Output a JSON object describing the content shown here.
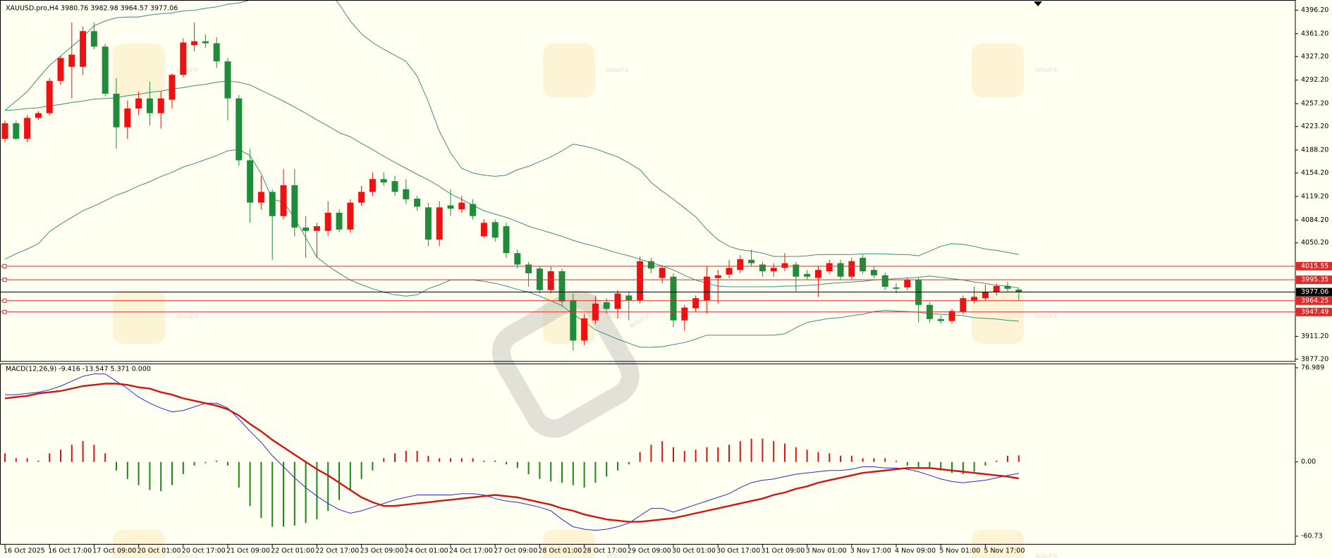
{
  "watermark": "WikiFX",
  "chart_data": [
    {
      "type": "candlestick",
      "title": "XAUUSD.pro,H4  3980.76 3982.98 3964.57 3977.06",
      "categories": [
        "16 Oct 2025",
        null,
        null,
        null,
        "16 Oct 17:00",
        null,
        null,
        null,
        "17 Oct 09:00",
        null,
        null,
        null,
        "20 Oct 01:00",
        null,
        null,
        null,
        "20 Oct 17:00",
        null,
        null,
        null,
        "21 Oct 09:00",
        null,
        null,
        null,
        "22 Oct 01:00",
        null,
        null,
        null,
        "22 Oct 17:00",
        null,
        null,
        null,
        "23 Oct 09:00",
        null,
        null,
        null,
        "24 Oct 01:00",
        null,
        null,
        null,
        "24 Oct 17:00",
        null,
        null,
        null,
        "27 Oct 09:00",
        null,
        null,
        null,
        "28 Oct 01:00",
        null,
        null,
        null,
        "28 Oct 17:00",
        null,
        null,
        null,
        "29 Oct 09:00",
        null,
        null,
        null,
        "30 Oct 01:00",
        null,
        null,
        null,
        "30 Oct 17:00",
        null,
        null,
        null,
        "31 Oct 09:00",
        null,
        null,
        null,
        "3 Nov 01:00",
        null,
        null,
        null,
        "3 Nov 17:00",
        null,
        null,
        null,
        "4 Nov 09:00",
        null,
        null,
        null,
        "5 Nov 01:00",
        null,
        null,
        null,
        "5 Nov 17:00",
        null,
        null,
        null
      ],
      "open": [
        4205,
        4228,
        4205,
        4236,
        4243,
        4291,
        4312,
        4312,
        4365,
        4342,
        4272,
        4222,
        4250,
        4265,
        4243,
        4263,
        4300,
        4344,
        4350,
        4347,
        4320,
        4265,
        4173,
        4110,
        4126,
        4090,
        4136,
        4073,
        4068,
        4068,
        4095,
        4070,
        4110,
        4126,
        4145,
        4142,
        4130,
        4116,
        4103,
        4055,
        4106,
        4100,
        4108,
        4060,
        4081,
        4075,
        4035,
        4018,
        4012,
        3980,
        4008,
        3965,
        3905,
        3935,
        3962,
        3952,
        3972,
        3965,
        4023,
        3998,
        4000,
        3935,
        3953,
        3965,
        3998,
        4003,
        4010,
        4025,
        4018,
        4008,
        4013,
        4018,
        4004,
        3998,
        4008,
        4020,
        4000,
        4028,
        4010,
        4002,
        3984,
        3984,
        3995,
        3958,
        3937,
        3934,
        3948,
        3964,
        3968,
        3977,
        3986,
        3980.76
      ],
      "high": [
        4232,
        4232,
        4240,
        4246,
        4295,
        4328,
        4378,
        4372,
        4378,
        4346,
        4295,
        4262,
        4275,
        4290,
        4275,
        4302,
        4354,
        4378,
        4360,
        4356,
        4325,
        4270,
        4190,
        4150,
        4130,
        4160,
        4160,
        4090,
        4080,
        4112,
        4100,
        4115,
        4135,
        4155,
        4155,
        4150,
        4145,
        4120,
        4110,
        4112,
        4130,
        4120,
        4115,
        4085,
        4085,
        4080,
        4040,
        4022,
        4016,
        4015,
        4012,
        3975,
        3945,
        3972,
        3968,
        3980,
        3978,
        4030,
        4028,
        4015,
        4005,
        3958,
        3972,
        4015,
        4010,
        4025,
        4032,
        4040,
        4022,
        4020,
        4035,
        4022,
        4010,
        4015,
        4025,
        4025,
        4028,
        4033,
        4015,
        4006,
        3990,
        3998,
        3998,
        3962,
        3942,
        3952,
        3972,
        3985,
        3988,
        3990,
        3992,
        3982.98
      ],
      "low": [
        4200,
        4203,
        4200,
        4233,
        4240,
        4285,
        4265,
        4300,
        4338,
        4268,
        4190,
        4205,
        4240,
        4225,
        4220,
        4250,
        4296,
        4335,
        4340,
        4310,
        4232,
        4165,
        4080,
        4100,
        4025,
        4085,
        4060,
        4028,
        4028,
        4060,
        4066,
        4065,
        4105,
        4120,
        4135,
        4120,
        4108,
        4098,
        4045,
        4045,
        4090,
        4095,
        4085,
        4058,
        4052,
        4028,
        4012,
        3985,
        3975,
        3975,
        3955,
        3890,
        3898,
        3930,
        3945,
        3938,
        3935,
        3960,
        4005,
        3990,
        3925,
        3920,
        3948,
        3945,
        3960,
        3998,
        4005,
        4015,
        4000,
        4000,
        4008,
        3978,
        3995,
        3970,
        4004,
        3995,
        3996,
        4004,
        3998,
        3980,
        3975,
        3980,
        3932,
        3932,
        3930,
        3930,
        3944,
        3960,
        3964,
        3972,
        3978,
        3964.57
      ],
      "close": [
        4228,
        4205,
        4236,
        4243,
        4291,
        4325,
        4330,
        4365,
        4342,
        4272,
        4222,
        4250,
        4265,
        4243,
        4265,
        4300,
        4348,
        4350,
        4347,
        4320,
        4265,
        4173,
        4110,
        4126,
        4090,
        4136,
        4073,
        4068,
        4075,
        4095,
        4070,
        4110,
        4126,
        4145,
        4140,
        4126,
        4115,
        4104,
        4055,
        4103,
        4101,
        4110,
        4090,
        4080,
        4058,
        4035,
        4018,
        4005,
        3980,
        4008,
        3963,
        3905,
        3938,
        3960,
        3952,
        3975,
        3965,
        4023,
        4012,
        4013,
        3935,
        3954,
        3968,
        4000,
        4002,
        4013,
        4026,
        4020,
        4008,
        4013,
        4020,
        4000,
        4000,
        4010,
        4020,
        4000,
        4023,
        4008,
        4002,
        3985,
        3982,
        3995,
        3958,
        3937,
        3934,
        3949,
        3968,
        3970,
        3977,
        3986,
        3982,
        3977.06
      ],
      "up_color": "#ee1111",
      "down_color": "#1f8c3b",
      "bollinger": {
        "color": "#3b8f7c",
        "upper": [
          4247,
          4261,
          4275,
          4295,
          4314,
          4328,
          4342,
          4356,
          4373,
          4380,
          4385,
          4386,
          4386,
          4389,
          4391,
          4392,
          4395,
          4396,
          4399,
          4401,
          4405,
          4407,
          4411,
          4421,
          4430,
          4437,
          4437,
          4437,
          4437,
          4424,
          4405,
          4380,
          4361,
          4348,
          4338,
          4329,
          4320,
          4298,
          4260,
          4216,
          4184,
          4161,
          4154,
          4151,
          4149,
          4151,
          4159,
          4164,
          4171,
          4178,
          4187,
          4197,
          4194,
          4190,
          4184,
          4178,
          4169,
          4159,
          4140,
          4127,
          4115,
          4102,
          4089,
          4070,
          4055,
          4045,
          4040,
          4038,
          4035,
          4030,
          4030,
          4030,
          4031,
          4033,
          4033,
          4033,
          4033,
          4034,
          4034,
          4034,
          4033,
          4033,
          4031,
          4038,
          4045,
          4049,
          4048,
          4045,
          4041,
          4039,
          4036,
          4033
        ],
        "middle": [
          4247,
          4248,
          4250,
          4251,
          4254,
          4256,
          4259,
          4261,
          4264,
          4265,
          4266,
          4269,
          4271,
          4274,
          4276,
          4279,
          4281,
          4284,
          4286,
          4289,
          4291,
          4289,
          4285,
          4277,
          4269,
          4261,
          4252,
          4243,
          4233,
          4224,
          4214,
          4208,
          4198,
          4189,
          4179,
          4170,
          4161,
          4152,
          4144,
          4134,
          4123,
          4115,
          4106,
          4098,
          4093,
          4088,
          4082,
          4075,
          4070,
          4065,
          4060,
          4054,
          4049,
          4045,
          4040,
          4035,
          4031,
          4026,
          4021,
          4016,
          4010,
          4002,
          3995,
          3990,
          3986,
          3985,
          3985,
          3985,
          3985,
          3985,
          3986,
          3986,
          3987,
          3988,
          3990,
          3991,
          3992,
          3993,
          3995,
          3996,
          3997,
          3998,
          3999,
          4001,
          3999,
          3997,
          3995,
          3992,
          3990,
          3987,
          3986,
          3983
        ],
        "lower": [
          4026,
          4034,
          4041,
          4049,
          4067,
          4078,
          4088,
          4098,
          4105,
          4113,
          4121,
          4127,
          4135,
          4141,
          4149,
          4155,
          4163,
          4168,
          4174,
          4180,
          4187,
          4189,
          4180,
          4153,
          4115,
          4111,
          4087,
          4058,
          4029,
          4016,
          4005,
          3995,
          3988,
          3982,
          3977,
          3973,
          3971,
          3973,
          3982,
          3988,
          3995,
          3995,
          3995,
          3993,
          3990,
          3986,
          3981,
          3977,
          3971,
          3964,
          3957,
          3944,
          3933,
          3921,
          3914,
          3907,
          3901,
          3895,
          3895,
          3896,
          3899,
          3902,
          3907,
          3913,
          3913,
          3913,
          3913,
          3913,
          3913,
          3913,
          3915,
          3924,
          3932,
          3935,
          3938,
          3939,
          3942,
          3944,
          3948,
          3950,
          3949,
          3948,
          3947,
          3945,
          3944,
          3943,
          3942,
          3939,
          3938,
          3937,
          3935,
          3934
        ]
      },
      "levels": [
        4015.55,
        3995.35,
        3964.25,
        3947.49
      ],
      "level_color": "#e0292b",
      "last_price": 3977.06,
      "ylim": [
        3875,
        4405
      ],
      "yticks": [
        {
          "value": 4396.2,
          "label": "4396.20"
        },
        {
          "value": 4361.2,
          "label": "4361.20"
        },
        {
          "value": 4327.2,
          "label": "4327.20"
        },
        {
          "value": 4292.2,
          "label": "4292.20"
        },
        {
          "value": 4257.2,
          "label": "4257.20"
        },
        {
          "value": 4223.2,
          "label": "4223.20"
        },
        {
          "value": 4188.2,
          "label": "4188.20"
        },
        {
          "value": 4154.2,
          "label": "4154.20"
        },
        {
          "value": 4119.2,
          "label": "4119.20"
        },
        {
          "value": 4084.2,
          "label": "4084.20"
        },
        {
          "value": 4050.2,
          "label": "4050.20"
        },
        {
          "value": 3911.2,
          "label": "3911.20"
        },
        {
          "value": 3877.2,
          "label": "3877.20"
        }
      ]
    },
    {
      "type": "macd",
      "title": "MACD(12,26,9) -9.416 -13.547 5.371 0.000",
      "macd": [
        55,
        55,
        56,
        57,
        59,
        62,
        66,
        70,
        72,
        72,
        66,
        60,
        53,
        48,
        44,
        41,
        42,
        45,
        48,
        48,
        44,
        35,
        25,
        16,
        5,
        -4,
        -13,
        -21,
        -28,
        -34,
        -39,
        -42,
        -40,
        -37,
        -34,
        -31,
        -29,
        -27,
        -27,
        -27,
        -27,
        -26,
        -26,
        -27,
        -30,
        -32,
        -33,
        -35,
        -37,
        -40,
        -47,
        -53,
        -55,
        -56,
        -55,
        -53,
        -50,
        -44,
        -38,
        -38,
        -41,
        -38,
        -35,
        -32,
        -29,
        -26,
        -21,
        -17,
        -15,
        -14,
        -12,
        -10,
        -9,
        -8,
        -7,
        -7,
        -6,
        -4,
        -4,
        -5,
        -5,
        -6,
        -8,
        -11,
        -14,
        -16,
        -17,
        -16,
        -15,
        -13,
        -11,
        -9.416
      ],
      "signal": [
        52,
        53,
        54,
        56,
        57,
        58,
        60,
        62,
        63,
        64,
        64,
        63,
        61,
        60,
        57,
        55,
        52,
        50,
        48,
        46,
        43,
        38,
        31,
        25,
        18,
        12,
        6,
        0,
        -6,
        -11,
        -17,
        -23,
        -29,
        -33,
        -36,
        -36,
        -35,
        -34,
        -33,
        -32,
        -31,
        -30,
        -29,
        -28,
        -27,
        -28,
        -29,
        -31,
        -33,
        -35,
        -38,
        -40,
        -43,
        -45,
        -47,
        -48,
        -49,
        -49,
        -48,
        -47,
        -46,
        -44,
        -42,
        -40,
        -38,
        -36,
        -34,
        -32,
        -30,
        -27,
        -25,
        -22,
        -20,
        -17,
        -15,
        -13,
        -11,
        -9,
        -8,
        -7,
        -6,
        -5,
        -5,
        -5,
        -6,
        -7,
        -8,
        -9,
        -10,
        -11,
        -12,
        -13.547
      ],
      "histogram": [
        7,
        3,
        3,
        1,
        7,
        10,
        14,
        17,
        14,
        7,
        -7,
        -14,
        -19,
        -23,
        -24,
        -19,
        -10,
        -3,
        -1,
        1,
        -3,
        -21,
        -36,
        -46,
        -53,
        -53,
        -52,
        -50,
        -47,
        -40,
        -31,
        -23,
        -14,
        -7,
        3,
        7,
        9,
        9,
        5,
        3,
        3,
        3,
        3,
        1,
        1,
        -2,
        -5,
        -10,
        -14,
        -16,
        -17,
        -19,
        -21,
        -17,
        -12,
        -7,
        -2,
        8,
        14,
        17,
        12,
        9,
        10,
        12,
        12,
        14,
        17,
        19,
        19,
        17,
        15,
        12,
        10,
        8,
        7,
        5,
        5,
        3,
        3,
        3,
        1,
        -3,
        -5,
        -5,
        -7,
        -9,
        -10,
        -8,
        -3,
        1,
        5,
        5.371
      ],
      "macd_color": "#2b2bd0",
      "signal_color": "#d01515",
      "hist_up_color": "#e01010",
      "hist_down_color": "#178a17",
      "ylim": [
        -60.73,
        76.989
      ],
      "yticks": [
        76.989,
        {
          "value": 0,
          "label": "0.00"
        },
        -60.73
      ]
    }
  ]
}
